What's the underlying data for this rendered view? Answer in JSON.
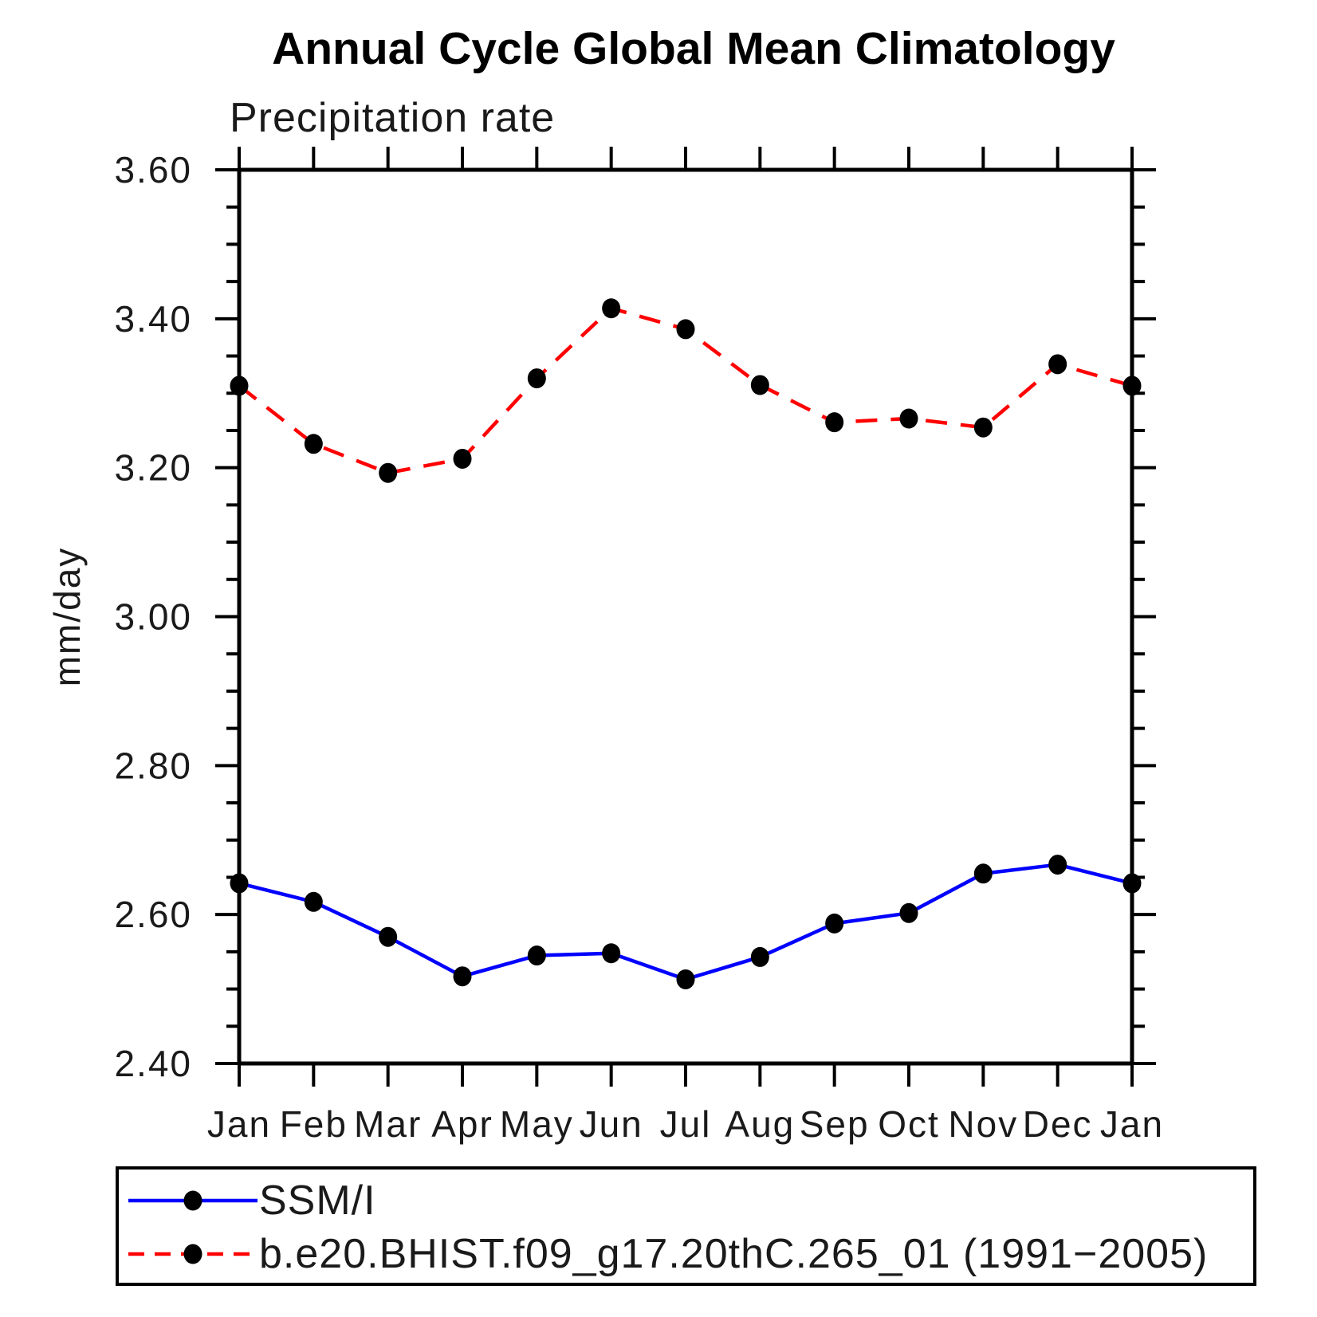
{
  "figure": {
    "title": "Annual Cycle Global Mean Climatology",
    "subtitle": "Precipitation rate"
  },
  "chart_data": {
    "type": "line",
    "title": "Annual Cycle Global Mean Climatology",
    "subtitle": "Precipitation rate",
    "xlabel": "",
    "ylabel": "mm/day",
    "categories": [
      "Jan",
      "Feb",
      "Mar",
      "Apr",
      "May",
      "Jun",
      "Jul",
      "Aug",
      "Sep",
      "Oct",
      "Nov",
      "Dec",
      "Jan"
    ],
    "series": [
      {
        "name": "SSM/I",
        "color": "#0000ff",
        "line_style": "solid",
        "marker": "filled-circle",
        "marker_color": "#000000",
        "values": [
          2.642,
          2.617,
          2.57,
          2.517,
          2.545,
          2.548,
          2.513,
          2.543,
          2.588,
          2.602,
          2.655,
          2.667,
          2.642
        ]
      },
      {
        "name": "b.e20.BHIST.f09_g17.20thC.265_01 (1991−2005)",
        "color": "#ff0000",
        "line_style": "dashed",
        "marker": "filled-circle",
        "marker_color": "#000000",
        "values": [
          3.31,
          3.232,
          3.193,
          3.212,
          3.32,
          3.414,
          3.386,
          3.311,
          3.261,
          3.266,
          3.254,
          3.339,
          3.31
        ]
      }
    ],
    "ylim": [
      2.4,
      3.6
    ],
    "ytick_major_step": 0.2,
    "ytick_minor_step": 0.05,
    "ytick_labels": [
      "2.40",
      "2.60",
      "2.80",
      "3.00",
      "3.20",
      "3.40",
      "3.60"
    ],
    "grid": false,
    "axis_color": "#000000",
    "legend_position": "bottom-left-box"
  }
}
